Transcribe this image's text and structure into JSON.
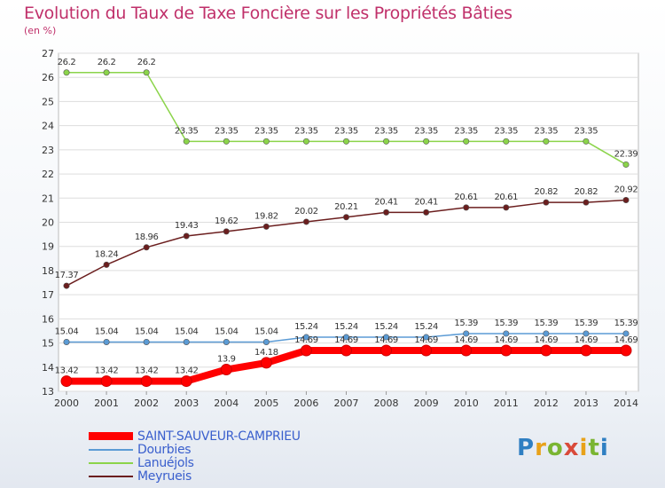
{
  "header": {
    "title": "Evolution du Taux de Taxe Foncière sur les Propriétés Bâties",
    "subtitle": "(en %)"
  },
  "logo": {
    "text": "Proxiti"
  },
  "chart_data": {
    "type": "line",
    "title": "Evolution du Taux de Taxe Foncière sur les Propriétés Bâties",
    "subtitle": "(en %)",
    "x": [
      2000,
      2001,
      2002,
      2003,
      2004,
      2005,
      2006,
      2007,
      2008,
      2009,
      2010,
      2011,
      2012,
      2013,
      2014
    ],
    "ylim": [
      13,
      27
    ],
    "yticks": [
      13,
      14,
      15,
      16,
      17,
      18,
      19,
      20,
      21,
      22,
      23,
      24,
      25,
      26,
      27
    ],
    "grid": "horizontal",
    "legend_position": "bottom-left",
    "series": [
      {
        "name": "SAINT-SAUVEUR-CAMPRIEU",
        "color": "#ff0000",
        "values": [
          13.42,
          13.42,
          13.42,
          13.42,
          13.9,
          14.18,
          14.69,
          14.69,
          14.69,
          14.69,
          14.69,
          14.69,
          14.69,
          14.69,
          14.69
        ],
        "labels": [
          "13.42",
          "13.42",
          "13.42",
          "13.42",
          "13.9",
          "14.18",
          "14.69",
          "14.69",
          "14.69",
          "14.69",
          "14.69",
          "14.69",
          "14.69",
          "14.69",
          "14.69"
        ]
      },
      {
        "name": "Dourbies",
        "color": "#5b9bd5",
        "values": [
          15.04,
          15.04,
          15.04,
          15.04,
          15.04,
          15.04,
          15.24,
          15.24,
          15.24,
          15.24,
          15.39,
          15.39,
          15.39,
          15.39,
          15.39
        ],
        "labels": [
          "15.04",
          "15.04",
          "15.04",
          "15.04",
          "15.04",
          "15.04",
          "15.24",
          "15.24",
          "15.24",
          "15.24",
          "15.39",
          "15.39",
          "15.39",
          "15.39",
          "15.39"
        ]
      },
      {
        "name": "Lanuéjols",
        "color": "#8bd44a",
        "values": [
          26.2,
          26.2,
          26.2,
          23.35,
          23.35,
          23.35,
          23.35,
          23.35,
          23.35,
          23.35,
          23.35,
          23.35,
          23.35,
          23.35,
          22.39
        ],
        "labels": [
          "26.2",
          "26.2",
          "26.2",
          "23.35",
          "23.35",
          "23.35",
          "23.35",
          "23.35",
          "23.35",
          "23.35",
          "23.35",
          "23.35",
          "23.35",
          "23.35",
          "22.39"
        ]
      },
      {
        "name": "Meyrueis",
        "color": "#6b1e1e",
        "values": [
          17.37,
          18.24,
          18.96,
          19.43,
          19.62,
          19.82,
          20.02,
          20.21,
          20.41,
          20.41,
          20.61,
          20.61,
          20.82,
          20.82,
          20.92
        ],
        "labels": [
          "17.37",
          "18.24",
          "18.96",
          "19.43",
          "19.62",
          "19.82",
          "20.02",
          "20.21",
          "20.41",
          "20.41",
          "20.61",
          "20.61",
          "20.82",
          "20.82",
          "20.92"
        ]
      }
    ]
  }
}
